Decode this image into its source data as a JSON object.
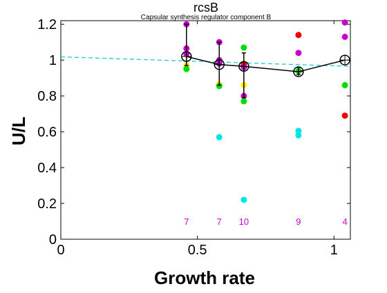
{
  "chart_data": {
    "type": "scatter",
    "title": "rcsB",
    "subtitle": "Capsular synthesis regulator component B",
    "xlabel": "Growth rate",
    "ylabel": "U/L",
    "xlim": [
      0,
      1.06
    ],
    "ylim": [
      0,
      1.22
    ],
    "x_ticks": [
      0,
      0.5,
      1
    ],
    "x_tick_labels": [
      "0",
      "0.5",
      "1"
    ],
    "y_ticks": [
      0,
      0.2,
      0.4,
      0.6,
      0.8,
      1,
      1.2
    ],
    "y_tick_labels": [
      "0",
      "0.2",
      "0.4",
      "0.6",
      "0.8",
      "1",
      "1.2"
    ],
    "grid": false,
    "colors": {
      "mean_line": "#000000",
      "trend_line": "#00cccc",
      "count_text": "#cc00cc",
      "magenta": "#cc00cc",
      "green": "#00dd00",
      "cyan": "#00e6e6",
      "yellow": "#ffee00",
      "red": "#ee0000"
    },
    "trend_line": {
      "x": [
        0,
        1.06
      ],
      "y": [
        1.018,
        0.965
      ]
    },
    "mean_series": {
      "x": [
        0.46,
        0.58,
        0.67,
        0.87,
        1.04
      ],
      "y": [
        1.02,
        0.975,
        0.965,
        0.935,
        1.0
      ],
      "err_low": [
        0.97,
        0.86,
        0.79,
        0.92,
        1.0
      ],
      "err_high": [
        1.2,
        1.1,
        1.04,
        0.96,
        1.0
      ]
    },
    "counts": [
      {
        "x": 0.46,
        "label": "7"
      },
      {
        "x": 0.58,
        "label": "7"
      },
      {
        "x": 0.67,
        "label": "10"
      },
      {
        "x": 0.87,
        "label": "9"
      },
      {
        "x": 1.04,
        "label": "4"
      }
    ],
    "count_y": 0.1,
    "points": [
      {
        "x": 0.46,
        "y": 1.2,
        "color": "magenta"
      },
      {
        "x": 0.46,
        "y": 1.065,
        "color": "magenta"
      },
      {
        "x": 0.46,
        "y": 1.035,
        "color": "magenta"
      },
      {
        "x": 0.46,
        "y": 0.97,
        "color": "yellow"
      },
      {
        "x": 0.46,
        "y": 0.95,
        "color": "green"
      },
      {
        "x": 0.58,
        "y": 1.1,
        "color": "magenta"
      },
      {
        "x": 0.58,
        "y": 1.0,
        "color": "magenta"
      },
      {
        "x": 0.58,
        "y": 0.98,
        "color": "magenta"
      },
      {
        "x": 0.58,
        "y": 0.865,
        "color": "yellow"
      },
      {
        "x": 0.58,
        "y": 0.855,
        "color": "green"
      },
      {
        "x": 0.58,
        "y": 0.57,
        "color": "cyan"
      },
      {
        "x": 0.67,
        "y": 1.07,
        "color": "green"
      },
      {
        "x": 0.67,
        "y": 0.975,
        "color": "red"
      },
      {
        "x": 0.67,
        "y": 0.96,
        "color": "magenta"
      },
      {
        "x": 0.67,
        "y": 0.86,
        "color": "yellow"
      },
      {
        "x": 0.67,
        "y": 0.8,
        "color": "magenta"
      },
      {
        "x": 0.67,
        "y": 0.77,
        "color": "green"
      },
      {
        "x": 0.67,
        "y": 0.22,
        "color": "cyan"
      },
      {
        "x": 0.87,
        "y": 1.14,
        "color": "red"
      },
      {
        "x": 0.87,
        "y": 1.04,
        "color": "magenta"
      },
      {
        "x": 0.87,
        "y": 0.94,
        "color": "green"
      },
      {
        "x": 0.87,
        "y": 0.605,
        "color": "cyan"
      },
      {
        "x": 0.87,
        "y": 0.58,
        "color": "cyan"
      },
      {
        "x": 1.04,
        "y": 1.21,
        "color": "magenta"
      },
      {
        "x": 1.04,
        "y": 1.13,
        "color": "magenta"
      },
      {
        "x": 1.04,
        "y": 0.86,
        "color": "green"
      },
      {
        "x": 1.04,
        "y": 0.69,
        "color": "red"
      }
    ]
  }
}
